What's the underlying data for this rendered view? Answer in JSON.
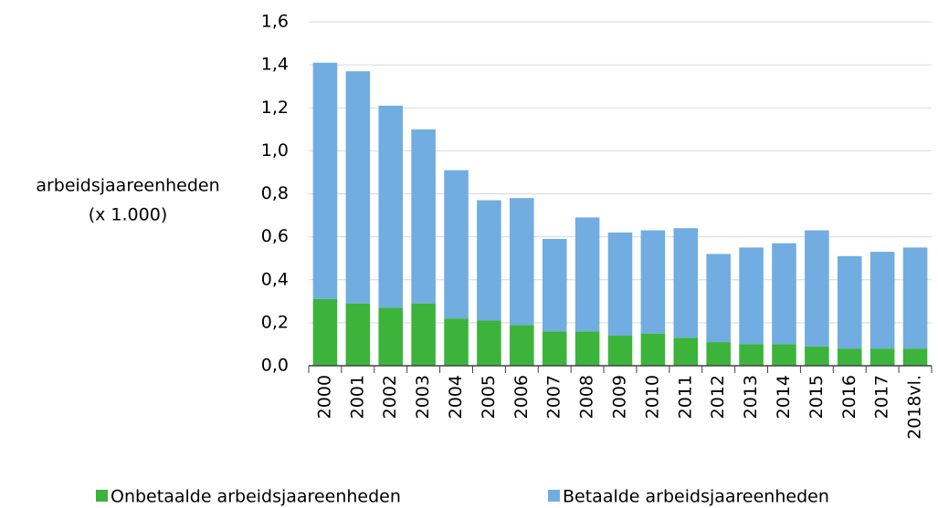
{
  "chart_data": {
    "type": "stacked_bar",
    "y_label": [
      "arbeidsjaareenheden",
      "(x 1.000)"
    ],
    "categories": [
      "2000",
      "2001",
      "2002",
      "2003",
      "2004",
      "2005",
      "2006",
      "2007",
      "2008",
      "2009",
      "2010",
      "2011",
      "2012",
      "2013",
      "2014",
      "2015",
      "2016",
      "2017",
      "2018vl."
    ],
    "series": [
      {
        "name": "Onbetaalde arbeidsjaareenheden",
        "color": "#3cb43c",
        "values": [
          0.31,
          0.29,
          0.27,
          0.29,
          0.22,
          0.21,
          0.19,
          0.16,
          0.16,
          0.14,
          0.15,
          0.13,
          0.11,
          0.1,
          0.1,
          0.09,
          0.08,
          0.08,
          0.08
        ]
      },
      {
        "name": "Betaalde arbeidsjaareenheden",
        "color": "#71ade0",
        "values": [
          1.1,
          1.08,
          0.94,
          0.81,
          0.69,
          0.56,
          0.59,
          0.43,
          0.53,
          0.48,
          0.48,
          0.51,
          0.41,
          0.45,
          0.47,
          0.54,
          0.43,
          0.45,
          0.47
        ]
      }
    ],
    "ylim": [
      0,
      1.6
    ],
    "yticks": [
      {
        "value": 0,
        "label": "0,0"
      },
      {
        "value": 0.2,
        "label": "0,2"
      },
      {
        "value": 0.4,
        "label": "0,4"
      },
      {
        "value": 0.6,
        "label": "0,6"
      },
      {
        "value": 0.8,
        "label": "0,8"
      },
      {
        "value": 1.0,
        "label": "1,0"
      },
      {
        "value": 1.2,
        "label": "1,2"
      },
      {
        "value": 1.4,
        "label": "1,4"
      },
      {
        "value": 1.6,
        "label": "1,6"
      }
    ],
    "grid": true
  }
}
